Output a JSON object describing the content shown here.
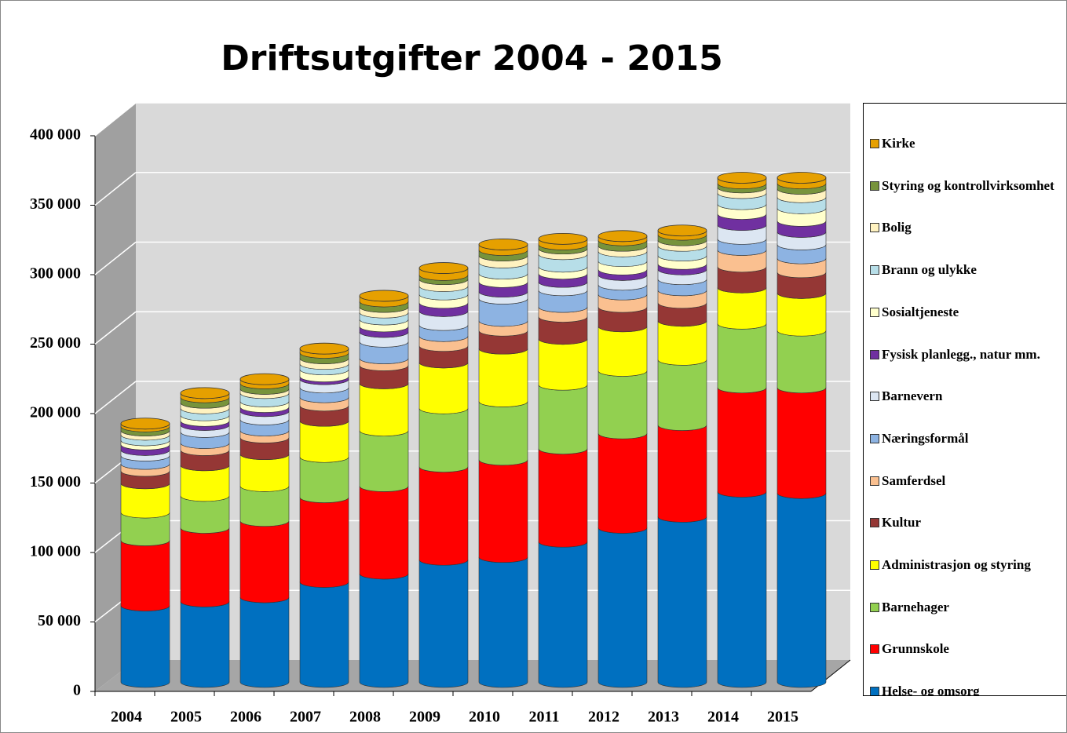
{
  "chart_data": {
    "type": "bar",
    "stacked": true,
    "title": "Driftsutgifter 2004 - 2015",
    "categories": [
      "2004",
      "2005",
      "2006",
      "2007",
      "2008",
      "2009",
      "2010",
      "2011",
      "2012",
      "2013",
      "2014",
      "2015"
    ],
    "ylim": [
      0,
      400000
    ],
    "yticks": [
      0,
      {
        "value": 50000,
        "label": "50 000"
      },
      {
        "value": 100000,
        "label": "100 000"
      },
      {
        "value": 150000,
        "label": "150 000"
      },
      {
        "value": 200000,
        "label": "200 000"
      },
      {
        "value": 250000,
        "label": "250 000"
      },
      {
        "value": 300000,
        "label": "300 000"
      },
      {
        "value": 350000,
        "label": "350 000"
      },
      {
        "value": 400000,
        "label": "400 000"
      }
    ],
    "grid": true,
    "legend": "right",
    "series": [
      {
        "name": "Helse- og omsorg",
        "color": "#0070c0",
        "values": [
          55000,
          58000,
          61000,
          72000,
          78000,
          88000,
          90000,
          101000,
          111000,
          119000,
          137000,
          136000
        ]
      },
      {
        "name": "Grunnskole",
        "color": "#ff0000",
        "values": [
          47000,
          53000,
          55000,
          61000,
          63000,
          67000,
          70000,
          67000,
          68000,
          66000,
          75000,
          76000
        ]
      },
      {
        "name": "Barnehager",
        "color": "#92d050",
        "values": [
          20000,
          23000,
          25000,
          29000,
          40000,
          42000,
          42000,
          46000,
          45000,
          47000,
          46000,
          41000
        ]
      },
      {
        "name": "Administrasjon og styring",
        "color": "#ffff00",
        "values": [
          21000,
          22000,
          23000,
          26000,
          34000,
          33000,
          38000,
          33000,
          32000,
          28000,
          26000,
          27000
        ]
      },
      {
        "name": "Kultur",
        "color": "#953735",
        "values": [
          9000,
          11000,
          12000,
          11000,
          13000,
          12000,
          13000,
          16000,
          14000,
          13000,
          15000,
          15000
        ]
      },
      {
        "name": "Samferdsel",
        "color": "#fac090",
        "values": [
          5000,
          5000,
          5000,
          6000,
          5000,
          7000,
          7000,
          7000,
          9000,
          9000,
          12000,
          10000
        ]
      },
      {
        "name": "Næringsformål",
        "color": "#8db3e2",
        "values": [
          6000,
          8000,
          8000,
          7000,
          12000,
          8000,
          16000,
          12000,
          7000,
          8000,
          8000,
          10000
        ]
      },
      {
        "name": "Barnevern",
        "color": "#dce6f2",
        "values": [
          4000,
          5000,
          6000,
          6000,
          7000,
          10000,
          5000,
          6000,
          7000,
          7000,
          10000,
          9000
        ]
      },
      {
        "name": "Fysisk planlegg., natur mm.",
        "color": "#7030a0",
        "values": [
          4000,
          3000,
          3000,
          2000,
          4000,
          6000,
          7000,
          6000,
          4000,
          4000,
          8000,
          8000
        ]
      },
      {
        "name": "Sosialtjeneste",
        "color": "#ffffcc",
        "values": [
          3000,
          4000,
          4000,
          5000,
          5000,
          6000,
          6000,
          5000,
          6000,
          6000,
          7000,
          9000
        ]
      },
      {
        "name": "Brann og ulykke",
        "color": "#b7dee8",
        "values": [
          4000,
          5000,
          6000,
          4000,
          5000,
          6000,
          8000,
          9000,
          7000,
          7000,
          8000,
          8000
        ]
      },
      {
        "name": "Bolig",
        "color": "#fff2c0",
        "values": [
          3000,
          4000,
          3000,
          4000,
          4000,
          5000,
          5000,
          4000,
          4000,
          4000,
          4000,
          6000
        ]
      },
      {
        "name": "Styring og kontrollvirksomhet",
        "color": "#77933c",
        "values": [
          3000,
          4000,
          4000,
          4000,
          4000,
          3000,
          4000,
          3000,
          4000,
          4000,
          3000,
          4000
        ]
      },
      {
        "name": "Kirke",
        "color": "#e6a000",
        "values": [
          2000,
          3000,
          3000,
          3000,
          4000,
          5000,
          4000,
          4000,
          3000,
          3000,
          4000,
          4000
        ]
      }
    ]
  }
}
